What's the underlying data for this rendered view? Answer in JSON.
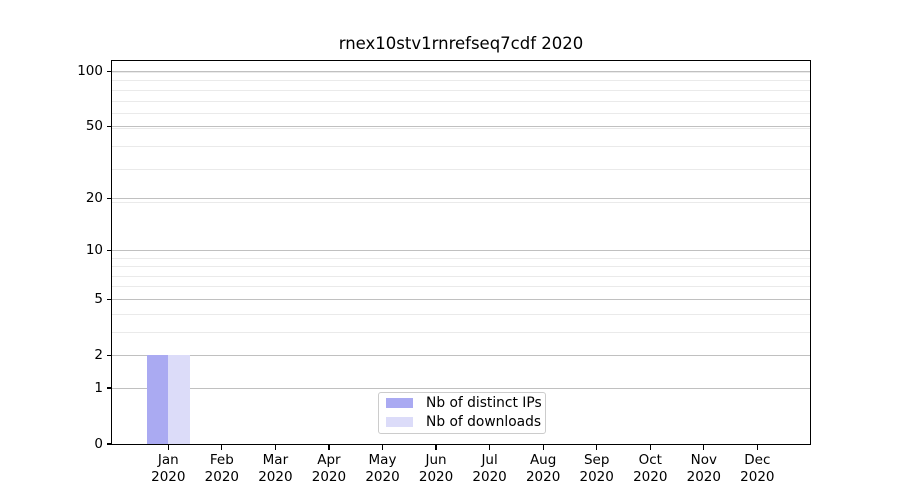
{
  "chart_data": {
    "type": "bar",
    "title": "rnex10stv1rnrefseq7cdf 2020",
    "categories": [
      "Jan 2020",
      "Feb 2020",
      "Mar 2020",
      "Apr 2020",
      "May 2020",
      "Jun 2020",
      "Jul 2020",
      "Aug 2020",
      "Sep 2020",
      "Oct 2020",
      "Nov 2020",
      "Dec 2020"
    ],
    "x_tick_labels": [
      [
        "Jan",
        "2020"
      ],
      [
        "Feb",
        "2020"
      ],
      [
        "Mar",
        "2020"
      ],
      [
        "Apr",
        "2020"
      ],
      [
        "May",
        "2020"
      ],
      [
        "Jun",
        "2020"
      ],
      [
        "Jul",
        "2020"
      ],
      [
        "Aug",
        "2020"
      ],
      [
        "Sep",
        "2020"
      ],
      [
        "Oct",
        "2020"
      ],
      [
        "Nov",
        "2020"
      ],
      [
        "Dec",
        "2020"
      ]
    ],
    "series": [
      {
        "name": "Nb of distinct IPs",
        "color": "#aaaaf2",
        "values": [
          2,
          0,
          0,
          0,
          0,
          0,
          0,
          0,
          0,
          0,
          0,
          0
        ]
      },
      {
        "name": "Nb of downloads",
        "color": "#dcdcf9",
        "values": [
          2,
          0,
          0,
          0,
          0,
          0,
          0,
          0,
          0,
          0,
          0,
          0
        ]
      }
    ],
    "y_axis": {
      "scale": "log1p",
      "ticks": [
        0,
        1,
        2,
        5,
        10,
        20,
        50,
        100
      ],
      "minor_gridline_values": [
        1,
        2,
        3,
        4,
        5,
        6,
        7,
        8,
        9,
        19,
        29,
        39,
        49,
        59,
        69,
        79,
        89,
        99
      ],
      "max": 114
    },
    "xlabel": "",
    "ylabel": "",
    "grid": {
      "major_color": "#c0c0c0",
      "minor_color": "#eaeaea",
      "which": "both"
    },
    "legend": {
      "position": "lower-center-inside"
    }
  }
}
